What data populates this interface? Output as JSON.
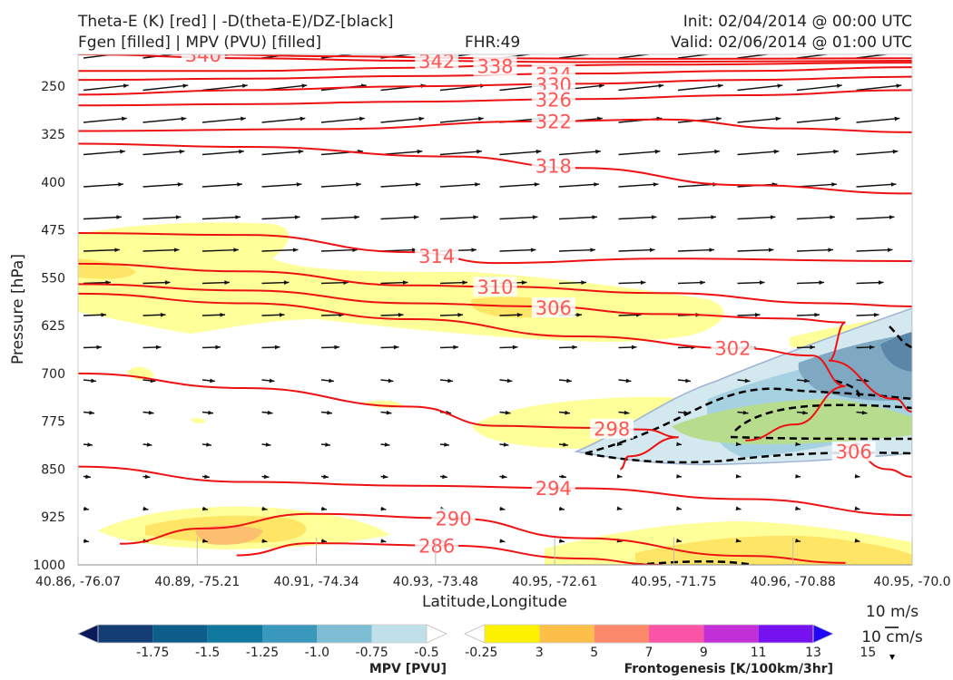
{
  "header": {
    "title_line1": "Theta-E (K) [red] | -D(theta-E)/DZ-[black]",
    "title_line2": "Fgen [filled] | MPV (PVU) [filled]",
    "fhr": "FHR:49",
    "init": "Init: 02/04/2014 @ 00:00 UTC",
    "valid": "Valid: 02/06/2014 @ 01:00 UTC"
  },
  "colors": {
    "theta_e": "#ee1111",
    "theta_e_label": "#ff5555",
    "mpv_outline": "#9fb3d3",
    "fgen_light": "#ffff99",
    "fgen_mid": "#ffe566",
    "fgen_orange": "#fcbf6f"
  },
  "chart_data": {
    "type": "cross-section",
    "xlabel": "Latitude,Longitude",
    "ylabel": "Pressure [hPa]",
    "x_ticks": [
      "40.86, -76.07",
      "40.89, -75.21",
      "40.91, -74.34",
      "40.93, -73.48",
      "40.95, -72.61",
      "40.95, -71.75",
      "40.96, -70.88",
      "40.95, -70.0"
    ],
    "y_ticks": [
      "250",
      "325",
      "400",
      "475",
      "550",
      "625",
      "700",
      "775",
      "850",
      "925",
      "1000"
    ],
    "ylim": [
      1000,
      200
    ],
    "theta_e_contours": [
      {
        "label": "340",
        "pts": [
          [
            0.0,
            196
          ],
          [
            0.15,
            200
          ],
          [
            0.3,
            203
          ],
          [
            0.5,
            206
          ],
          [
            0.7,
            207
          ],
          [
            1.0,
            206
          ]
        ]
      },
      {
        "label": "342",
        "pts": [
          [
            0.0,
            200
          ],
          [
            0.2,
            206
          ],
          [
            0.4,
            210
          ],
          [
            0.6,
            212
          ],
          [
            0.8,
            211
          ],
          [
            1.0,
            210
          ]
        ]
      },
      {
        "label": "338",
        "pts": [
          [
            0.0,
            226
          ],
          [
            0.2,
            226
          ],
          [
            0.4,
            221
          ],
          [
            0.5,
            218
          ],
          [
            0.7,
            216
          ],
          [
            1.0,
            213
          ]
        ]
      },
      {
        "label": "334",
        "pts": [
          [
            0.0,
            240
          ],
          [
            0.2,
            238
          ],
          [
            0.4,
            234
          ],
          [
            0.6,
            230
          ],
          [
            0.8,
            226
          ],
          [
            1.0,
            220
          ]
        ]
      },
      {
        "label": "330",
        "pts": [
          [
            0.0,
            263
          ],
          [
            0.2,
            256
          ],
          [
            0.4,
            250
          ],
          [
            0.6,
            246
          ],
          [
            0.8,
            240
          ],
          [
            1.0,
            235
          ]
        ]
      },
      {
        "label": "326",
        "pts": [
          [
            0.0,
            280
          ],
          [
            0.2,
            278
          ],
          [
            0.4,
            274
          ],
          [
            0.6,
            270
          ],
          [
            0.8,
            264
          ],
          [
            1.0,
            256
          ]
        ]
      },
      {
        "label": "322",
        "pts": [
          [
            0.0,
            320
          ],
          [
            0.3,
            317
          ],
          [
            0.55,
            305
          ],
          [
            0.7,
            302
          ],
          [
            0.85,
            316
          ],
          [
            1.0,
            322
          ]
        ]
      },
      {
        "label": "318",
        "pts": [
          [
            0.0,
            340
          ],
          [
            0.2,
            345
          ],
          [
            0.45,
            360
          ],
          [
            0.6,
            378
          ],
          [
            0.8,
            405
          ],
          [
            1.0,
            418
          ]
        ]
      },
      {
        "label": "314",
        "pts": [
          [
            0.0,
            480
          ],
          [
            0.2,
            483
          ],
          [
            0.4,
            510
          ],
          [
            0.5,
            527
          ],
          [
            0.7,
            520
          ],
          [
            1.0,
            524
          ]
        ]
      },
      {
        "label": "310",
        "pts": [
          [
            0.0,
            528
          ],
          [
            0.2,
            540
          ],
          [
            0.4,
            562
          ],
          [
            0.5,
            564
          ],
          [
            0.7,
            574
          ],
          [
            0.9,
            590
          ],
          [
            1.0,
            595
          ]
        ]
      },
      {
        "label": "306",
        "pts": [
          [
            0.0,
            560
          ],
          [
            0.2,
            570
          ],
          [
            0.4,
            590
          ],
          [
            0.55,
            595
          ],
          [
            0.7,
            607
          ],
          [
            0.85,
            614
          ],
          [
            0.92,
            620
          ],
          [
            0.9,
            680
          ],
          [
            0.98,
            740
          ],
          [
            1.0,
            760
          ]
        ]
      },
      {
        "label": "306",
        "pts": [
          [
            0.92,
            815
          ],
          [
            0.97,
            850
          ],
          [
            1.0,
            862
          ]
        ]
      },
      {
        "label": "302",
        "pts": [
          [
            0.0,
            575
          ],
          [
            0.2,
            590
          ],
          [
            0.4,
            615
          ],
          [
            0.6,
            642
          ],
          [
            0.8,
            661
          ],
          [
            0.88,
            672
          ],
          [
            0.92,
            720
          ],
          [
            0.86,
            780
          ],
          [
            0.8,
            805
          ]
        ]
      },
      {
        "label": "298",
        "pts": [
          [
            0.0,
            700
          ],
          [
            0.2,
            723
          ],
          [
            0.4,
            752
          ],
          [
            0.5,
            782
          ],
          [
            0.6,
            785
          ],
          [
            0.68,
            788
          ],
          [
            0.72,
            800
          ],
          [
            0.66,
            830
          ],
          [
            0.65,
            850
          ]
        ]
      },
      {
        "label": "294",
        "pts": [
          [
            0.0,
            846
          ],
          [
            0.2,
            870
          ],
          [
            0.4,
            876
          ],
          [
            0.6,
            880
          ],
          [
            0.8,
            897
          ],
          [
            1.0,
            922
          ]
        ]
      },
      {
        "label": "290",
        "pts": [
          [
            0.05,
            967
          ],
          [
            0.15,
            943
          ],
          [
            0.28,
            920
          ],
          [
            0.45,
            927
          ],
          [
            0.6,
            958
          ],
          [
            0.8,
            986
          ],
          [
            0.92,
            997
          ]
        ]
      },
      {
        "label": "286",
        "pts": [
          [
            0.19,
            985
          ],
          [
            0.28,
            966
          ],
          [
            0.45,
            970
          ],
          [
            0.6,
            990
          ],
          [
            0.7,
            1000
          ]
        ]
      }
    ],
    "legends": [
      {
        "label": "MPV [PVU]",
        "ticks": [
          "-1.75",
          "-1.5",
          "-1.25",
          "-1.0",
          "-0.75",
          "-0.5",
          "-0.25"
        ],
        "colors": [
          "#08195c",
          "#143d76",
          "#0e5e8c",
          "#10789e",
          "#3a98bd",
          "#7ebdd3",
          "#bfdfe9",
          "#ffffff"
        ]
      },
      {
        "label": "Frontogenesis [K/100km/3hr]",
        "ticks": [
          "3",
          "5",
          "7",
          "9",
          "11",
          "13",
          "15"
        ],
        "colors": [
          "#ffffff",
          "#fff200",
          "#fcbf49",
          "#fc8a6a",
          "#f954a5",
          "#c22fd6",
          "#7611f0",
          "#2008f5"
        ]
      }
    ],
    "wind_scale": {
      "horizontal": "10 m/s",
      "vertical": "10 cm/s"
    }
  }
}
